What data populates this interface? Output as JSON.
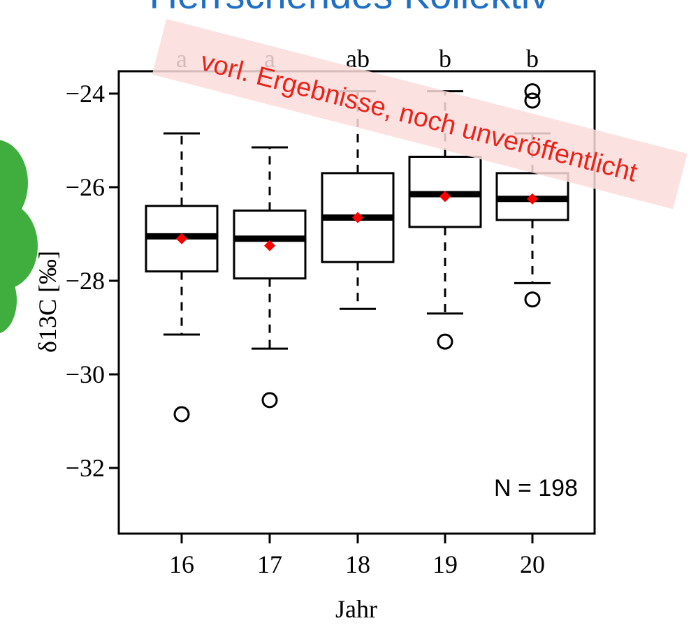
{
  "title_fragment": "Herrschendes Kollektiv",
  "watermark": "vorl. Ergebnisse, noch unveröffentlicht",
  "colors": {
    "title": "#1f6fc4",
    "watermark_text": "#e8231a",
    "watermark_bg": "#fbdcdc",
    "median_marker": "#ff0000",
    "decoration_green": "#3fae3f",
    "axis": "#000000"
  },
  "decoration_icon": "green-blob-icon",
  "chart_data": {
    "type": "box",
    "xlabel": "Jahr",
    "ylabel": "δ13C [‰]",
    "ylim": [
      -33.3,
      -23.55
    ],
    "yticks": [
      -24,
      -26,
      -28,
      -30,
      -32
    ],
    "ytick_labels": [
      "−24",
      "−26",
      "−28",
      "−30",
      "−32"
    ],
    "categories": [
      "16",
      "17",
      "18",
      "19",
      "20"
    ],
    "group_letters": [
      "a",
      "a",
      "ab",
      "b",
      "b"
    ],
    "boxes": [
      {
        "whisker_low": -29.15,
        "q1": -27.8,
        "median": -27.05,
        "q3": -26.4,
        "whisker_high": -24.85,
        "mean": -27.1,
        "outliers": [
          -30.85
        ]
      },
      {
        "whisker_low": -29.45,
        "q1": -27.95,
        "median": -27.1,
        "q3": -26.5,
        "whisker_high": -25.15,
        "mean": -27.25,
        "outliers": [
          -30.55
        ]
      },
      {
        "whisker_low": -28.6,
        "q1": -27.6,
        "median": -26.65,
        "q3": -25.7,
        "whisker_high": -23.95,
        "mean": -26.65,
        "outliers": []
      },
      {
        "whisker_low": -28.7,
        "q1": -26.85,
        "median": -26.15,
        "q3": -25.35,
        "whisker_high": -23.95,
        "mean": -26.2,
        "outliers": [
          -29.3
        ]
      },
      {
        "whisker_low": -28.05,
        "q1": -26.7,
        "median": -26.25,
        "q3": -25.7,
        "whisker_high": -24.85,
        "mean": -26.25,
        "outliers": [
          -23.95,
          -24.15,
          -28.4
        ]
      }
    ],
    "annotation": "N = 198"
  }
}
